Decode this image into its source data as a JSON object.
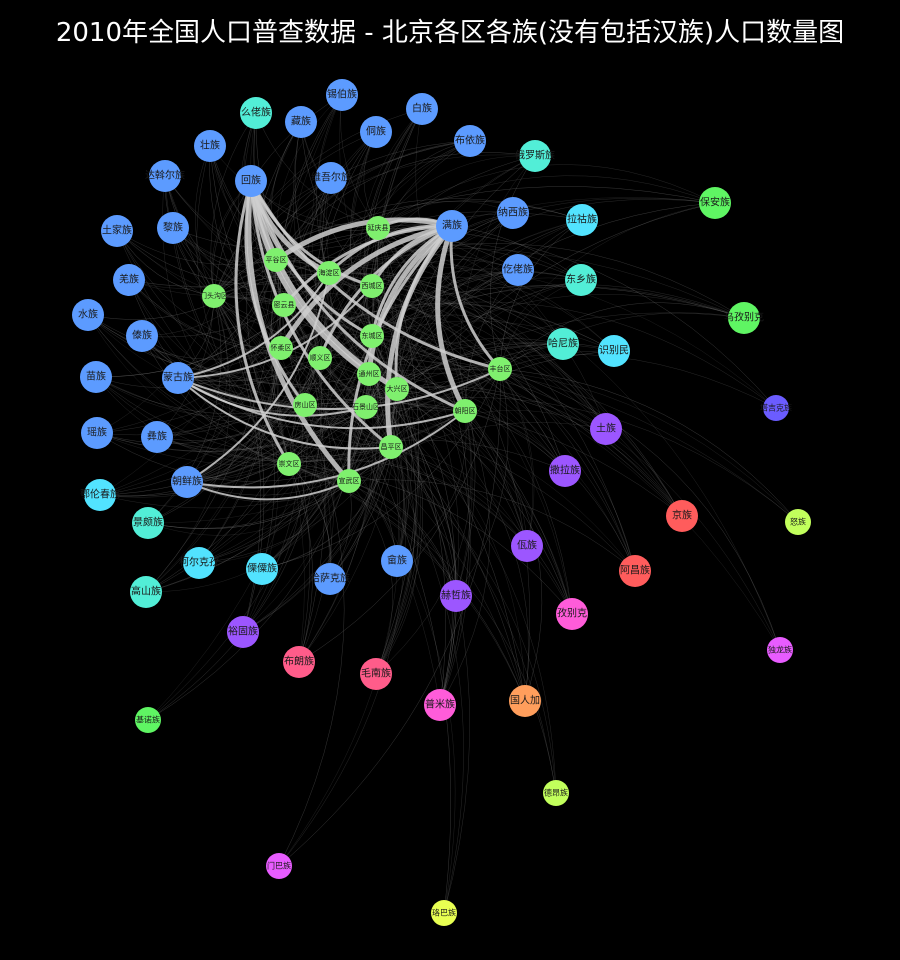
{
  "title": "2010年全国人口普查数据 - 北京各区各族(没有包括汉族)人口数量图",
  "colors": {
    "background": "#000000",
    "district": "#7FF06E",
    "edge_strong": "#CFCFCF",
    "edge_faint": "#777777"
  },
  "districts": [
    {
      "id": "d_yanqing",
      "label": "延庆县"
    },
    {
      "id": "d_pinggu",
      "label": "平谷区"
    },
    {
      "id": "d_haidian",
      "label": "海淀区"
    },
    {
      "id": "d_xicheng",
      "label": "西城区"
    },
    {
      "id": "d_mentougou",
      "label": "门头沟区"
    },
    {
      "id": "d_miyun",
      "label": "密云县"
    },
    {
      "id": "d_huairou",
      "label": "怀柔区"
    },
    {
      "id": "d_shunyi",
      "label": "顺义区"
    },
    {
      "id": "d_dongcheng",
      "label": "东城区"
    },
    {
      "id": "d_tongzhou",
      "label": "通州区"
    },
    {
      "id": "d_fangshan",
      "label": "房山区"
    },
    {
      "id": "d_shijingshan",
      "label": "石景山区"
    },
    {
      "id": "d_daxing",
      "label": "大兴区"
    },
    {
      "id": "d_changping",
      "label": "昌平区"
    },
    {
      "id": "d_fengtai",
      "label": "丰台区"
    },
    {
      "id": "d_chaoyang",
      "label": "朝阳区"
    },
    {
      "id": "d_xuanwu",
      "label": "宣武区"
    },
    {
      "id": "d_chongwen",
      "label": "崇文区"
    }
  ],
  "ethnic_groups": [
    {
      "id": "e_hui",
      "label": "回族",
      "color": "#5C9BFF"
    },
    {
      "id": "e_man",
      "label": "满族",
      "color": "#5C9BFF"
    },
    {
      "id": "e_menggu",
      "label": "蒙古族",
      "color": "#5C9BFF"
    },
    {
      "id": "e_chaoxian",
      "label": "朝鲜族",
      "color": "#5C9BFF"
    },
    {
      "id": "e_tujia",
      "label": "土家族",
      "color": "#5C9BFF"
    },
    {
      "id": "e_zhuang",
      "label": "壮族",
      "color": "#5C9BFF"
    },
    {
      "id": "e_miao",
      "label": "苗族",
      "color": "#5C9BFF"
    },
    {
      "id": "e_yi",
      "label": "彝族",
      "color": "#5C9BFF"
    },
    {
      "id": "e_zang",
      "label": "藏族",
      "color": "#5C9BFF"
    },
    {
      "id": "e_weiwuer",
      "label": "维吾尔族",
      "color": "#5C9BFF"
    },
    {
      "id": "e_bai",
      "label": "白族",
      "color": "#5C9BFF"
    },
    {
      "id": "e_dong",
      "label": "侗族",
      "color": "#5C9BFF"
    },
    {
      "id": "e_buyi",
      "label": "布依族",
      "color": "#5C9BFF"
    },
    {
      "id": "e_xibo",
      "label": "锡伯族",
      "color": "#5C9BFF"
    },
    {
      "id": "e_dawoer",
      "label": "达斡尔族",
      "color": "#5C9BFF"
    },
    {
      "id": "e_yao",
      "label": "瑶族",
      "color": "#5C9BFF"
    },
    {
      "id": "e_she",
      "label": "畲族",
      "color": "#5C9BFF"
    },
    {
      "id": "e_shui",
      "label": "水族",
      "color": "#5C9BFF"
    },
    {
      "id": "e_li",
      "label": "黎族",
      "color": "#5C9BFF"
    },
    {
      "id": "e_qiang",
      "label": "羌族",
      "color": "#5C9BFF"
    },
    {
      "id": "e_dai",
      "label": "傣族",
      "color": "#5C9BFF"
    },
    {
      "id": "e_gelao",
      "label": "仡佬族",
      "color": "#5C9BFF"
    },
    {
      "id": "e_naxi",
      "label": "纳西族",
      "color": "#5C9BFF"
    },
    {
      "id": "e_hasake",
      "label": "哈萨克族",
      "color": "#5C9BFF"
    },
    {
      "id": "e_mulao",
      "label": "么佬族",
      "color": "#52EED7"
    },
    {
      "id": "e_eluosi",
      "label": "俄罗斯族",
      "color": "#52EED7"
    },
    {
      "id": "e_dongxiang",
      "label": "东乡族",
      "color": "#52EED7"
    },
    {
      "id": "e_hani",
      "label": "哈尼族",
      "color": "#52EED7"
    },
    {
      "id": "e_jingpo",
      "label": "景颇族",
      "color": "#52EED7"
    },
    {
      "id": "e_gaoshan",
      "label": "高山族",
      "color": "#52EED7"
    },
    {
      "id": "e_lahu",
      "label": "拉祜族",
      "color": "#52E3FF"
    },
    {
      "id": "e_shibiemin",
      "label": "识别民",
      "color": "#52E3FF"
    },
    {
      "id": "e_elunchun",
      "label": "鄂伦春族",
      "color": "#52E3FF"
    },
    {
      "id": "e_keerkezi",
      "label": "柯尔克孜",
      "color": "#52E3FF"
    },
    {
      "id": "e_lisu",
      "label": "傈僳族",
      "color": "#52E3FF"
    },
    {
      "id": "e_hezhe",
      "label": "赫哲族",
      "color": "#9C56FF"
    },
    {
      "id": "e_tu",
      "label": "土族",
      "color": "#9C56FF"
    },
    {
      "id": "e_sala",
      "label": "撒拉族",
      "color": "#9C56FF"
    },
    {
      "id": "e_wa",
      "label": "佤族",
      "color": "#9C56FF"
    },
    {
      "id": "e_yugu",
      "label": "裕固族",
      "color": "#9C56FF"
    },
    {
      "id": "e_tajike",
      "label": "塔吉克族",
      "color": "#6B5CFF"
    },
    {
      "id": "e_baoan",
      "label": "保安族",
      "color": "#5FF563"
    },
    {
      "id": "e_wuzibieke",
      "label": "乌孜别克",
      "color": "#5FF563"
    },
    {
      "id": "e_jinuo",
      "label": "基诺族",
      "color": "#5FF563"
    },
    {
      "id": "e_nu",
      "label": "怒族",
      "color": "#C2FF5C"
    },
    {
      "id": "e_deang",
      "label": "德昂族",
      "color": "#C2FF5C"
    },
    {
      "id": "e_luoba",
      "label": "珞巴族",
      "color": "#E8FF52"
    },
    {
      "id": "e_jing",
      "label": "京族",
      "color": "#FF5C5C"
    },
    {
      "id": "e_achang",
      "label": "阿昌族",
      "color": "#FF5C5C"
    },
    {
      "id": "e_bulang",
      "label": "布朗族",
      "color": "#FF5C8A"
    },
    {
      "id": "e_maonan",
      "label": "毛南族",
      "color": "#FF5C8A"
    },
    {
      "id": "e_pumi",
      "label": "普米族",
      "color": "#FF5CD9"
    },
    {
      "id": "e_wuzibieke2",
      "label": "孜别克",
      "color": "#FF5CD9"
    },
    {
      "id": "e_dulong",
      "label": "独龙族",
      "color": "#E85CFF"
    },
    {
      "id": "e_menba",
      "label": "门巴族",
      "color": "#E85CFF"
    },
    {
      "id": "e_waiguo",
      "label": "国人加",
      "color": "#FF9E5C"
    }
  ],
  "strong_edges": [
    [
      "e_hui",
      "d_haidian"
    ],
    [
      "e_hui",
      "d_chaoyang"
    ],
    [
      "e_hui",
      "d_xicheng"
    ],
    [
      "e_hui",
      "d_xuanwu"
    ],
    [
      "e_hui",
      "d_fengtai"
    ],
    [
      "e_hui",
      "d_changping"
    ],
    [
      "e_hui",
      "d_tongzhou"
    ],
    [
      "e_hui",
      "d_dongcheng"
    ],
    [
      "e_hui",
      "d_chongwen"
    ],
    [
      "e_hui",
      "d_daxing"
    ],
    [
      "e_hui",
      "d_fangshan"
    ],
    [
      "e_man",
      "d_haidian"
    ],
    [
      "e_man",
      "d_chaoyang"
    ],
    [
      "e_man",
      "d_xicheng"
    ],
    [
      "e_man",
      "d_fengtai"
    ],
    [
      "e_man",
      "d_changping"
    ],
    [
      "e_man",
      "d_dongcheng"
    ],
    [
      "e_man",
      "d_miyun"
    ],
    [
      "e_man",
      "d_huairou"
    ],
    [
      "e_man",
      "d_shunyi"
    ],
    [
      "e_man",
      "d_daxing"
    ],
    [
      "e_man",
      "d_tongzhou"
    ],
    [
      "e_man",
      "d_xuanwu"
    ],
    [
      "e_man",
      "d_yanqing"
    ],
    [
      "e_man",
      "d_pinggu"
    ],
    [
      "e_menggu",
      "d_haidian"
    ],
    [
      "e_menggu",
      "d_chaoyang"
    ],
    [
      "e_menggu",
      "d_fengtai"
    ],
    [
      "e_menggu",
      "d_changping"
    ],
    [
      "e_menggu",
      "d_xicheng"
    ],
    [
      "e_menggu",
      "d_shijingshan"
    ],
    [
      "e_chaoxian",
      "d_chaoyang"
    ],
    [
      "e_chaoxian",
      "d_haidian"
    ],
    [
      "e_chaoxian",
      "d_xuanwu"
    ]
  ]
}
